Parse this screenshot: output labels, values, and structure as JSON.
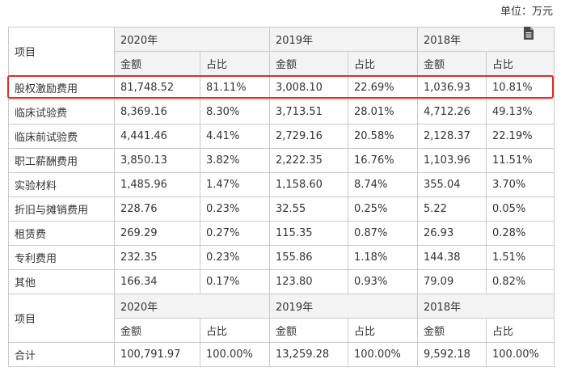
{
  "unit_label": "单位：万元",
  "header": {
    "item_label": "项目",
    "years": [
      "2020年",
      "2019年",
      "2018年"
    ],
    "amount_label": "金额",
    "ratio_label": "占比"
  },
  "rows": [
    {
      "name": "股权激励费用",
      "cells": [
        "81,748.52",
        "81.11%",
        "3,008.10",
        "22.69%",
        "1,036.93",
        "10.81%"
      ],
      "highlighted": true
    },
    {
      "name": "临床试验费",
      "cells": [
        "8,369.16",
        "8.30%",
        "3,713.51",
        "28.01%",
        "4,712.26",
        "49.13%"
      ]
    },
    {
      "name": "临床前试验费",
      "cells": [
        "4,441.46",
        "4.41%",
        "2,729.16",
        "20.58%",
        "2,128.37",
        "22.19%"
      ]
    },
    {
      "name": "职工薪酬费用",
      "cells": [
        "3,850.13",
        "3.82%",
        "2,222.35",
        "16.76%",
        "1,103.96",
        "11.51%"
      ]
    },
    {
      "name": "实验材料",
      "cells": [
        "1,485.96",
        "1.47%",
        "1,158.60",
        "8.74%",
        "355.04",
        "3.70%"
      ]
    },
    {
      "name": "折旧与摊销费用",
      "cells": [
        "228.76",
        "0.23%",
        "32.55",
        "0.25%",
        "5.22",
        "0.05%"
      ]
    },
    {
      "name": "租赁费",
      "cells": [
        "269.29",
        "0.27%",
        "115.35",
        "0.87%",
        "26.93",
        "0.28%"
      ]
    },
    {
      "name": "专利费用",
      "cells": [
        "232.35",
        "0.23%",
        "155.86",
        "1.18%",
        "144.38",
        "1.51%"
      ]
    },
    {
      "name": "其他",
      "cells": [
        "166.34",
        "0.17%",
        "123.80",
        "0.93%",
        "79.09",
        "0.82%"
      ]
    }
  ],
  "total": {
    "name": "合计",
    "cells": [
      "100,791.97",
      "100.00%",
      "13,259.28",
      "100.00%",
      "9,592.18",
      "100.00%"
    ]
  },
  "icons": {
    "document": "document-icon"
  },
  "colors": {
    "highlight_border": "#e32a2a",
    "grid": "#c9c9c9",
    "header_shade": "#f3f3f3"
  }
}
